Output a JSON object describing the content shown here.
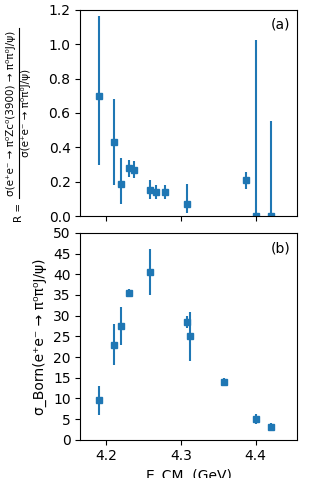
{
  "chart_data": [
    {
      "type": "scatter",
      "marker": "square",
      "annotation": "(a)",
      "ylabel_prefix": "R =",
      "ylabel_numerator": "σ(e⁺e⁻ → π⁰Zc⁰(3900) → π⁰π⁰J/ψ)",
      "ylabel_denominator": "σ(e⁺e⁻ → π⁰π⁰J/ψ)",
      "x": [
        4.19,
        4.21,
        4.22,
        4.23,
        4.237,
        4.258,
        4.267,
        4.278,
        4.308,
        4.387,
        4.4,
        4.42
      ],
      "values": [
        0.7,
        0.43,
        0.19,
        0.28,
        0.27,
        0.155,
        0.14,
        0.14,
        0.07,
        0.21,
        0.005,
        0.005
      ],
      "yerr_lo": [
        0.4,
        0.25,
        0.12,
        0.05,
        0.05,
        0.055,
        0.04,
        0.04,
        0.05,
        0.05,
        0.005,
        0.005
      ],
      "yerr_hi": [
        0.46,
        0.25,
        0.15,
        0.05,
        0.05,
        0.055,
        0.04,
        0.04,
        0.12,
        0.05,
        1.02,
        0.55
      ],
      "xlim": [
        4.165,
        4.455
      ],
      "xticks": [
        4.2,
        4.3,
        4.4
      ],
      "ylim": [
        0.0,
        1.2
      ],
      "yticks": [
        0.0,
        0.2,
        0.4,
        0.6,
        0.8,
        1.0,
        1.2
      ],
      "tick_labels": "y"
    },
    {
      "type": "scatter",
      "marker": "square",
      "annotation": "(b)",
      "xlabel": "E_CM  (GeV)",
      "ylabel": "σ_Born(e⁺e⁻ → π⁰π⁰J/ψ)",
      "x": [
        4.19,
        4.21,
        4.22,
        4.23,
        4.258,
        4.308,
        4.312,
        4.358,
        4.4,
        4.42
      ],
      "values": [
        9.5,
        23.0,
        27.5,
        35.5,
        40.5,
        28.5,
        25.0,
        14.0,
        5.0,
        3.0
      ],
      "yerr_lo": [
        3.5,
        5.0,
        4.5,
        1.0,
        5.5,
        1.5,
        6.0,
        1.0,
        1.2,
        1.0
      ],
      "yerr_hi": [
        3.5,
        5.0,
        4.5,
        1.0,
        5.5,
        1.5,
        6.0,
        1.0,
        1.2,
        1.0
      ],
      "xlim": [
        4.165,
        4.455
      ],
      "xticks": [
        4.2,
        4.3,
        4.4
      ],
      "ylim": [
        0,
        50
      ],
      "yticks": [
        0,
        5,
        10,
        15,
        20,
        25,
        30,
        35,
        40,
        45,
        50
      ]
    }
  ]
}
